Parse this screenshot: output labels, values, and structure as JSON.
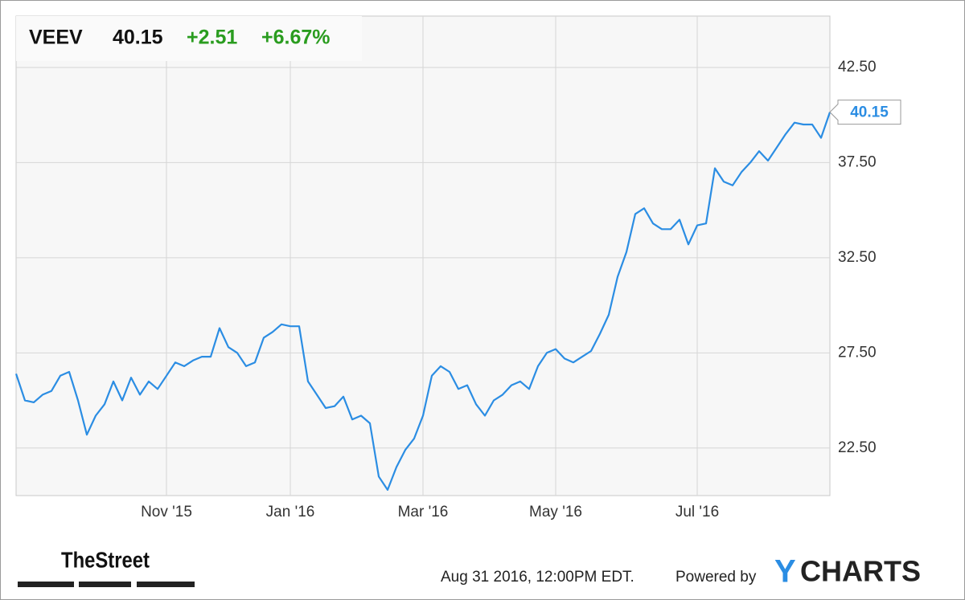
{
  "chart_data": {
    "type": "line",
    "header": {
      "symbol": "VEEV",
      "price": "40.15",
      "change": "+2.51",
      "change_percent": "+6.67%"
    },
    "categories": [
      null,
      null,
      null,
      null,
      null,
      null,
      null,
      null,
      null,
      null,
      null,
      null,
      null,
      null,
      null,
      null,
      null,
      "Nov '15",
      null,
      null,
      null,
      null,
      null,
      null,
      null,
      null,
      null,
      null,
      null,
      null,
      null,
      "Jan '16",
      null,
      null,
      null,
      null,
      null,
      null,
      null,
      null,
      null,
      null,
      null,
      null,
      null,
      null,
      "Mar '16",
      null,
      null,
      null,
      null,
      null,
      null,
      null,
      null,
      null,
      null,
      null,
      null,
      null,
      null,
      "May '16",
      null,
      null,
      null,
      null,
      null,
      null,
      null,
      null,
      null,
      null,
      null,
      null,
      null,
      null,
      null,
      "Jul '16",
      null,
      null,
      null,
      null,
      null,
      null,
      null,
      null,
      null,
      null,
      null,
      null,
      null,
      null,
      null
    ],
    "series": [
      {
        "name": "VEEV",
        "color": "#2b8de3",
        "values": [
          26.4,
          25.0,
          24.9,
          25.3,
          25.5,
          26.3,
          26.5,
          25.0,
          23.2,
          24.2,
          24.8,
          26.0,
          25.0,
          26.2,
          25.3,
          26.0,
          25.6,
          26.3,
          27.0,
          26.8,
          27.1,
          27.3,
          27.3,
          28.8,
          27.8,
          27.5,
          26.8,
          27.0,
          28.3,
          28.6,
          29.0,
          28.9,
          28.9,
          26.0,
          25.3,
          24.6,
          24.7,
          25.2,
          24.0,
          24.2,
          23.8,
          21.0,
          20.3,
          21.5,
          22.4,
          23.0,
          24.2,
          26.3,
          26.8,
          26.5,
          25.6,
          25.8,
          24.8,
          24.2,
          25.0,
          25.3,
          25.8,
          26.0,
          25.6,
          26.8,
          27.5,
          27.7,
          27.2,
          27.0,
          27.3,
          27.6,
          28.5,
          29.5,
          31.5,
          32.8,
          34.8,
          35.1,
          34.3,
          34.0,
          34.0,
          34.5,
          33.2,
          34.2,
          34.3,
          37.2,
          36.5,
          36.3,
          37.0,
          37.5,
          38.1,
          37.6,
          38.3,
          39.0,
          39.6,
          39.5,
          39.5,
          38.8,
          40.15
        ]
      }
    ],
    "ylim": [
      20,
      45.2
    ],
    "yticks": [
      {
        "value": 22.5,
        "label": "22.50"
      },
      {
        "value": 27.5,
        "label": "27.50"
      },
      {
        "value": 32.5,
        "label": "32.50"
      },
      {
        "value": 37.5,
        "label": "37.50"
      },
      {
        "value": 42.5,
        "label": "42.50"
      }
    ],
    "grid": true,
    "footer": {
      "timestamp": "Aug 31 2016, 12:00PM EDT.",
      "powered_by": "Powered by",
      "brand_y": "Y",
      "brand_rest": "CHARTS",
      "publisher": "TheStreet"
    }
  }
}
